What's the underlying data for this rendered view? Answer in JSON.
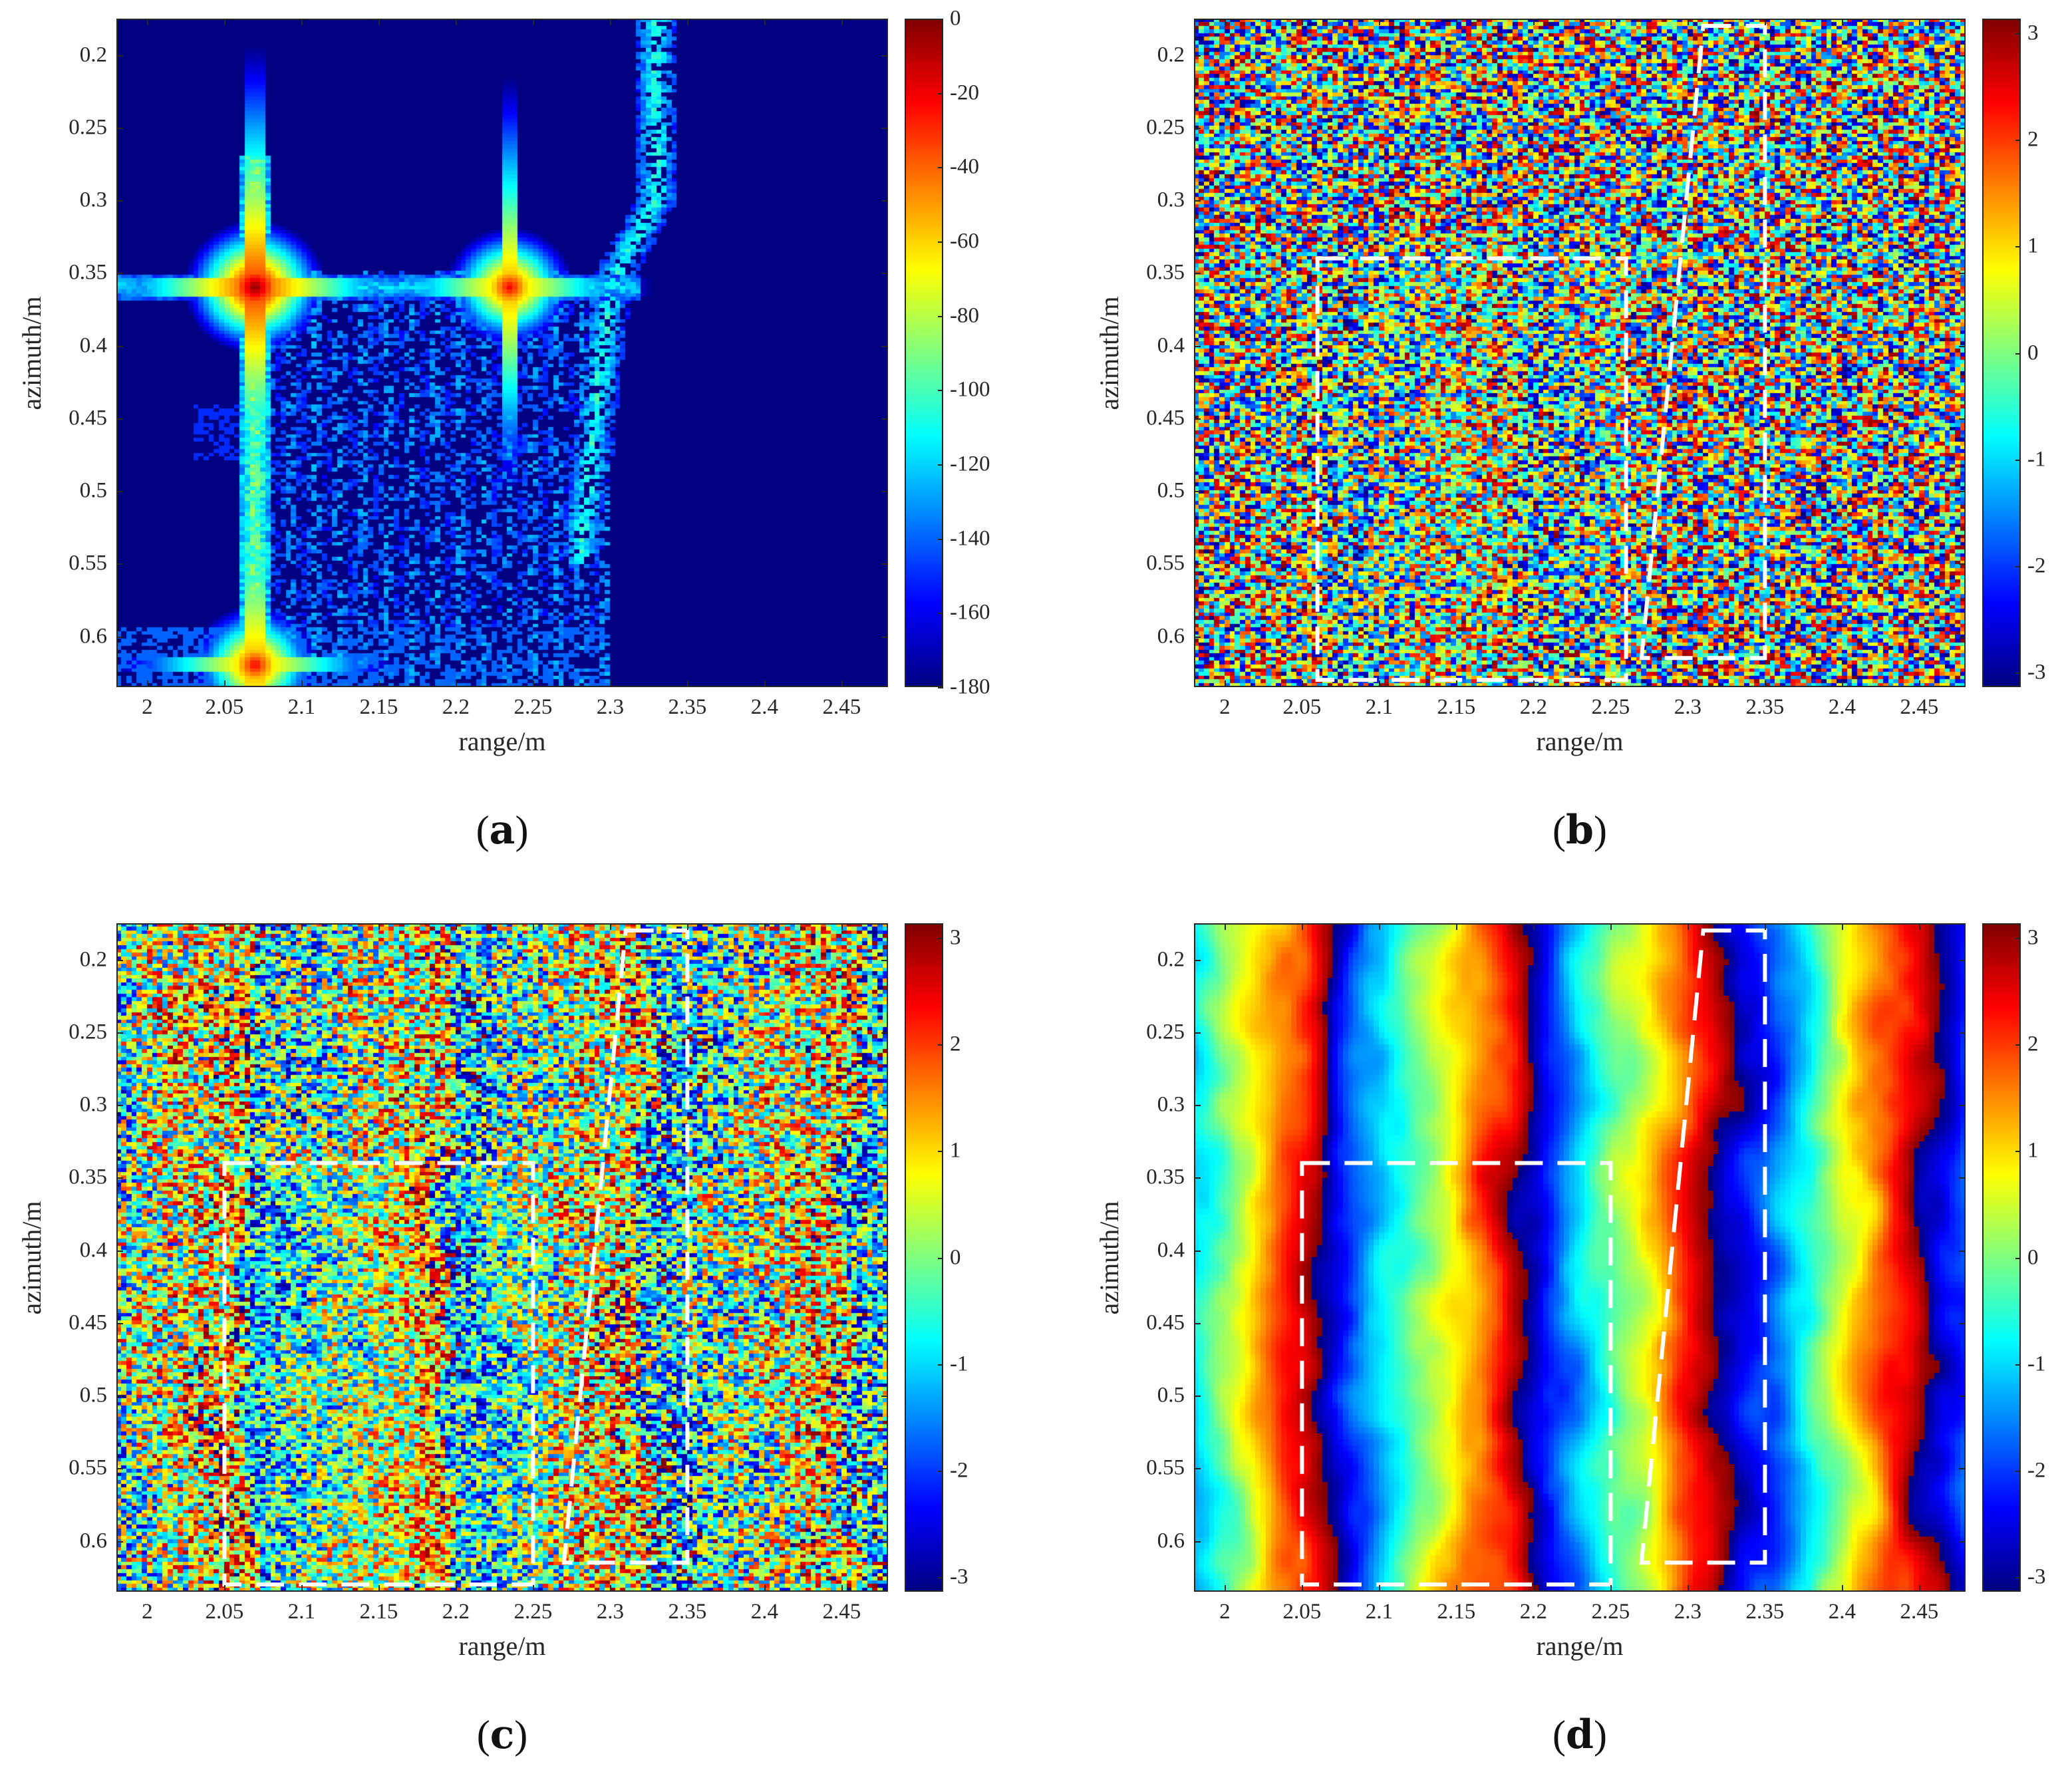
{
  "chart_data": [
    {
      "type": "heatmap",
      "caption": "a",
      "xlabel": "range/m",
      "ylabel": "azimuth/m",
      "xlim": [
        1.98,
        2.48
      ],
      "ylim": [
        0.175,
        0.635
      ],
      "xticks": [
        "2",
        "2.05",
        "2.1",
        "2.15",
        "2.2",
        "2.25",
        "2.3",
        "2.35",
        "2.4",
        "2.45"
      ],
      "yticks": [
        "0.2",
        "0.25",
        "0.3",
        "0.35",
        "0.4",
        "0.45",
        "0.5",
        "0.55",
        "0.6"
      ],
      "colorbar": {
        "min": -180,
        "max": 0,
        "ticks": [
          "0",
          "-20",
          "-40",
          "-60",
          "-80",
          "-100",
          "-120",
          "-140",
          "-160",
          "-180"
        ]
      },
      "colormap": "jet",
      "field": "magnitude_db",
      "features": {
        "background_db": -180,
        "point_targets": [
          {
            "range": 2.07,
            "azimuth": 0.36,
            "peak_db": 0
          },
          {
            "range": 2.235,
            "azimuth": 0.36,
            "peak_db": -20
          },
          {
            "range": 2.07,
            "azimuth": 0.62,
            "peak_db": -20
          }
        ],
        "horizontal_streak": {
          "azimuth": 0.36,
          "range_from": 1.98,
          "range_to": 2.32,
          "level_db": -120
        },
        "vertical_streak": {
          "range": 2.07,
          "azimuth_from": 0.27,
          "azimuth_to": 0.635,
          "level_db": -90
        },
        "diffuse_region": {
          "range_from": 2.06,
          "range_to": 2.3,
          "azimuth_from": 0.35,
          "azimuth_to": 0.635,
          "level_db": -150
        },
        "diagonal_structure": {
          "points": [
            [
              2.33,
              0.175
            ],
            [
              2.33,
              0.3
            ],
            [
              2.3,
              0.36
            ],
            [
              2.28,
              0.55
            ]
          ],
          "level_db": -110
        }
      }
    },
    {
      "type": "heatmap",
      "caption": "b",
      "xlabel": "range/m",
      "ylabel": "azimuth/m",
      "xlim": [
        1.98,
        2.48
      ],
      "ylim": [
        0.175,
        0.635
      ],
      "xticks": [
        "2",
        "2.05",
        "2.1",
        "2.15",
        "2.2",
        "2.25",
        "2.3",
        "2.35",
        "2.4",
        "2.45"
      ],
      "yticks": [
        "0.2",
        "0.25",
        "0.3",
        "0.35",
        "0.4",
        "0.45",
        "0.5",
        "0.55",
        "0.6"
      ],
      "colorbar": {
        "min": -3.14,
        "max": 3.14,
        "ticks": [
          "3",
          "2",
          "1",
          "0",
          "-1",
          "-2",
          "-3"
        ]
      },
      "colormap": "jet",
      "field": "phase_noisy",
      "noise_level": 1.0,
      "dashed_boxes": [
        {
          "shape": "rect",
          "range_from": 2.06,
          "range_to": 2.26,
          "azimuth_from": 0.34,
          "azimuth_to": 0.63
        },
        {
          "shape": "quad",
          "points": [
            [
              2.31,
              0.18
            ],
            [
              2.35,
              0.18
            ],
            [
              2.35,
              0.615
            ],
            [
              2.27,
              0.615
            ]
          ]
        }
      ]
    },
    {
      "type": "heatmap",
      "caption": "c",
      "xlabel": "range/m",
      "ylabel": "azimuth/m",
      "xlim": [
        1.98,
        2.48
      ],
      "ylim": [
        0.175,
        0.635
      ],
      "xticks": [
        "2",
        "2.05",
        "2.1",
        "2.15",
        "2.2",
        "2.25",
        "2.3",
        "2.35",
        "2.4",
        "2.45"
      ],
      "yticks": [
        "0.2",
        "0.25",
        "0.3",
        "0.35",
        "0.4",
        "0.45",
        "0.5",
        "0.55",
        "0.6"
      ],
      "colorbar": {
        "min": -3.14,
        "max": 3.14,
        "ticks": [
          "3",
          "2",
          "1",
          "0",
          "-1",
          "-2",
          "-3"
        ]
      },
      "colormap": "jet",
      "field": "phase_noisy",
      "noise_level": 0.75,
      "dashed_boxes": [
        {
          "shape": "rect",
          "range_from": 2.05,
          "range_to": 2.25,
          "azimuth_from": 0.34,
          "azimuth_to": 0.63
        },
        {
          "shape": "quad",
          "points": [
            [
              2.31,
              0.18
            ],
            [
              2.35,
              0.18
            ],
            [
              2.35,
              0.615
            ],
            [
              2.27,
              0.615
            ]
          ]
        }
      ]
    },
    {
      "type": "heatmap",
      "caption": "d",
      "xlabel": "range/m",
      "ylabel": "azimuth/m",
      "xlim": [
        1.98,
        2.48
      ],
      "ylim": [
        0.175,
        0.635
      ],
      "xticks": [
        "2",
        "2.05",
        "2.1",
        "2.15",
        "2.2",
        "2.25",
        "2.3",
        "2.35",
        "2.4",
        "2.45"
      ],
      "yticks": [
        "0.2",
        "0.25",
        "0.3",
        "0.35",
        "0.4",
        "0.45",
        "0.5",
        "0.55",
        "0.6"
      ],
      "colorbar": {
        "min": -3.14,
        "max": 3.14,
        "ticks": [
          "3",
          "2",
          "1",
          "0",
          "-1",
          "-2",
          "-3"
        ]
      },
      "colormap": "jet",
      "field": "phase_smooth",
      "fringe_period_m": 0.13,
      "dashed_boxes": [
        {
          "shape": "rect",
          "range_from": 2.05,
          "range_to": 2.25,
          "azimuth_from": 0.34,
          "azimuth_to": 0.63
        },
        {
          "shape": "quad",
          "points": [
            [
              2.31,
              0.18
            ],
            [
              2.35,
              0.18
            ],
            [
              2.35,
              0.615
            ],
            [
              2.27,
              0.615
            ]
          ]
        }
      ]
    }
  ]
}
